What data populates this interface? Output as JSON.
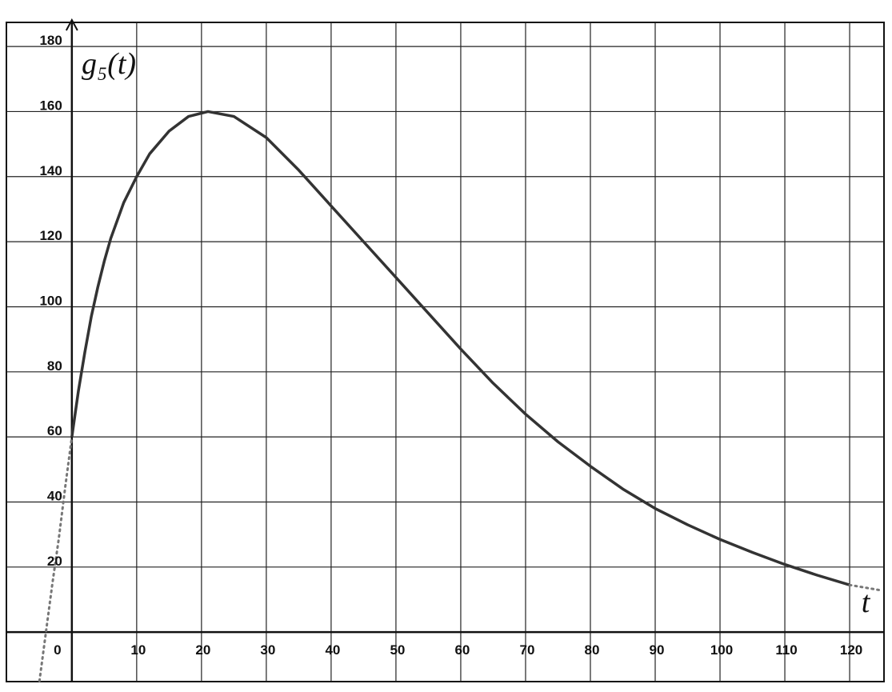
{
  "chart_data": {
    "type": "line",
    "xlabel": "t",
    "ylabel": "g₅(t)",
    "x": [
      -5,
      -4,
      -3,
      -2,
      -1,
      0,
      1,
      2,
      3,
      4,
      5,
      6,
      8,
      10,
      12,
      15,
      18,
      21,
      25,
      30,
      35,
      40,
      45,
      50,
      55,
      60,
      65,
      70,
      75,
      80,
      85,
      90,
      95,
      100,
      105,
      110,
      115,
      120,
      125
    ],
    "series": [
      {
        "color": "#333333",
        "style": "solid",
        "values": [
          null,
          null,
          null,
          null,
          null,
          60,
          74,
          86,
          97,
          106,
          114,
          121,
          132,
          140,
          147,
          154,
          158.5,
          160,
          158.5,
          152,
          142,
          131,
          120,
          109,
          98,
          87,
          76.5,
          67,
          58.5,
          51,
          44,
          38,
          33,
          28.5,
          24.5,
          20.8,
          17.5,
          14.5,
          null
        ]
      },
      {
        "color": "#777777",
        "style": "dotted",
        "values": [
          -15,
          0,
          15,
          29,
          45,
          60,
          null,
          null,
          null,
          null,
          null,
          null,
          null,
          null,
          null,
          null,
          null,
          null,
          null,
          null,
          null,
          null,
          null,
          null,
          null,
          null,
          null,
          null,
          null,
          null,
          null,
          null,
          null,
          null,
          null,
          null,
          null,
          14.5,
          12.8
        ]
      }
    ],
    "xlim": [
      -10.1,
      125.3
    ],
    "ylim": [
      -15.2,
      187.4
    ],
    "xticks": [
      0,
      10,
      20,
      30,
      40,
      50,
      60,
      70,
      80,
      90,
      100,
      110,
      120
    ],
    "yticks": [
      20,
      40,
      60,
      80,
      100,
      120,
      140,
      160,
      180
    ],
    "grid": true
  }
}
